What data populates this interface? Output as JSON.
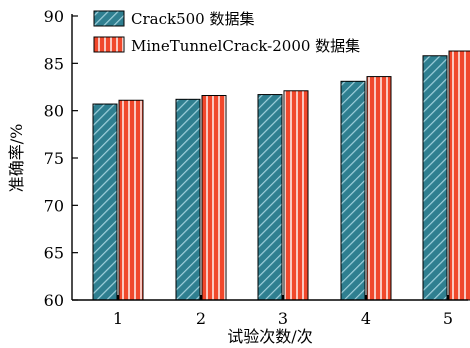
{
  "chart_data": {
    "type": "bar",
    "categories": [
      "1",
      "2",
      "3",
      "4",
      "5"
    ],
    "series": [
      {
        "name": "Crack500 数据集",
        "values": [
          80.7,
          81.2,
          81.7,
          83.1,
          85.8
        ],
        "color": "#2f7f90",
        "hatch_color": "#9fd0dc",
        "pattern": "diagonal"
      },
      {
        "name": "MineTunnelCrack-2000 数据集",
        "values": [
          81.1,
          81.6,
          82.1,
          83.6,
          86.3
        ],
        "color": "#f0482c",
        "hatch_color": "#ffffff",
        "pattern": "vertical"
      }
    ],
    "xlabel": "试验次数/次",
    "ylabel": "准确率/%",
    "ylim": [
      60,
      90
    ],
    "yticks": [
      60,
      65,
      70,
      75,
      80,
      85,
      90
    ],
    "grid": false,
    "legend_position": "top-left"
  }
}
